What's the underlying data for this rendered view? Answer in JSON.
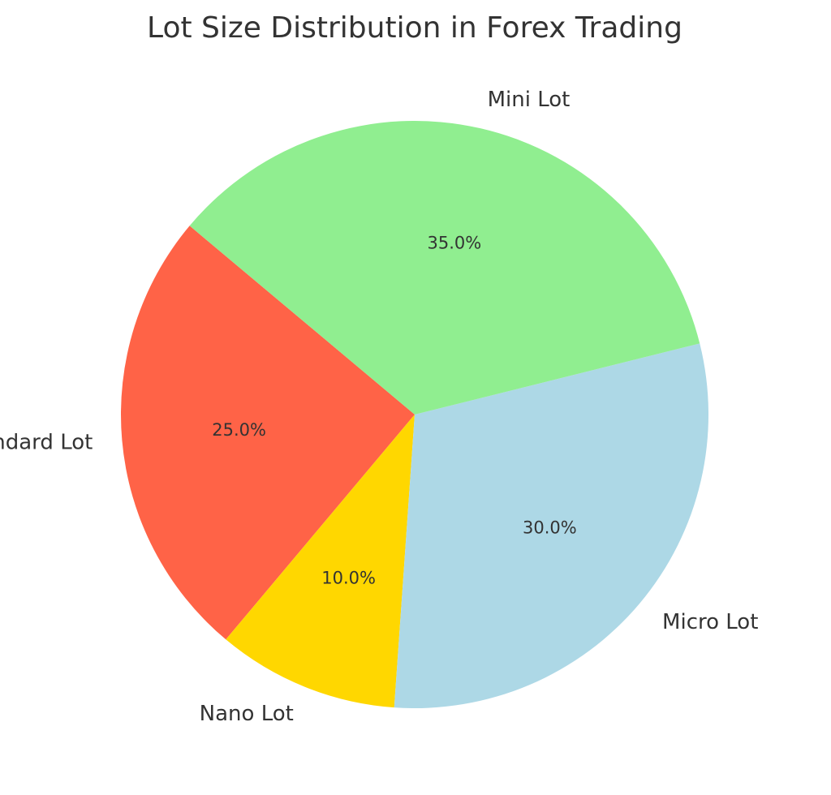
{
  "chart_data": {
    "type": "pie",
    "title": "Lot Size Distribution in Forex Trading",
    "start_angle_deg": 140,
    "direction": "counterclockwise",
    "legend": "none",
    "slices": [
      {
        "label": "Standard Lot",
        "value": 25.0,
        "pct_label": "25.0%",
        "color": "#FF6347"
      },
      {
        "label": "Nano Lot",
        "value": 10.0,
        "pct_label": "10.0%",
        "color": "#FFD700"
      },
      {
        "label": "Micro Lot",
        "value": 30.0,
        "pct_label": "30.0%",
        "color": "#ADD8E6"
      },
      {
        "label": "Mini Lot",
        "value": 35.0,
        "pct_label": "35.0%",
        "color": "#90EE90"
      }
    ]
  }
}
